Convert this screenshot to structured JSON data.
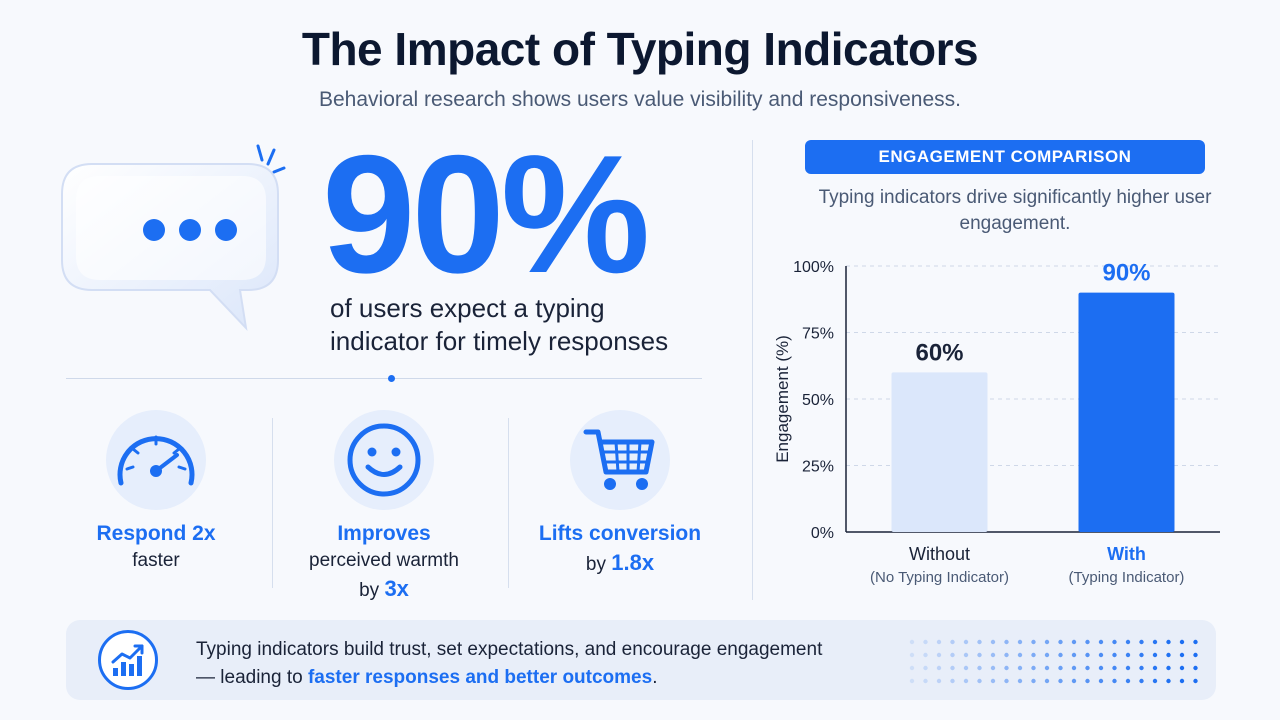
{
  "header": {
    "title": "The Impact of Typing Indicators",
    "subtitle": "Behavioral research shows users value visibility and responsiveness."
  },
  "hero": {
    "stat": "90%",
    "description": "of users expect a typing indicator for timely responses"
  },
  "stats": [
    {
      "icon": "speedometer-icon",
      "line1": "Respond 2x",
      "line2": "faster"
    },
    {
      "icon": "smiley-icon",
      "line1": "Improves",
      "line2": "perceived warmth",
      "line3_prefix": "by",
      "line3_value": "3x"
    },
    {
      "icon": "shopping-cart-icon",
      "line1": "Lifts conversion",
      "line2_prefix": "by",
      "line2_value": "1.8x"
    }
  ],
  "chart_panel": {
    "header": "ENGAGEMENT COMPARISON",
    "caption": "Typing indicators drive significantly higher user engagement."
  },
  "chart_data": {
    "type": "bar",
    "categories": [
      "Without",
      "With"
    ],
    "category_sublabels": [
      "(No Typing Indicator)",
      "(Typing Indicator)"
    ],
    "values": [
      60,
      90
    ],
    "data_labels": [
      "60%",
      "90%"
    ],
    "ylabel": "Engagement (%)",
    "ylim": [
      0,
      100
    ],
    "yticks": [
      0,
      25,
      50,
      75,
      100
    ],
    "ytick_labels": [
      "0%",
      "25%",
      "50%",
      "75%",
      "100%"
    ],
    "grid": true,
    "colors": [
      "#dbe7fb",
      "#1c6ef2"
    ]
  },
  "banner": {
    "icon": "growth-chart-icon",
    "text_part1": "Typing indicators build trust, set expectations, and encourage engagement",
    "text_part2": "— leading to",
    "text_highlight": "faster responses and better outcomes",
    "text_end": "."
  },
  "colors": {
    "accent": "#1c6ef2",
    "light_accent": "#dbe7fb",
    "background": "#f7f9fd"
  }
}
